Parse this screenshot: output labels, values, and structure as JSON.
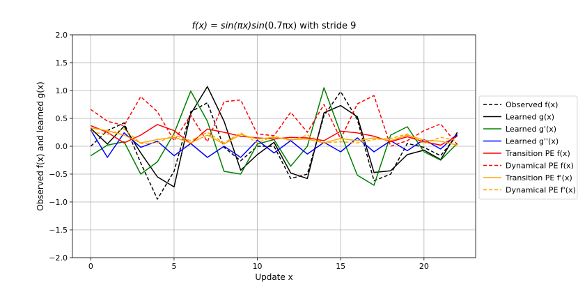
{
  "chart_data": {
    "type": "line",
    "title": "f(x) = sin(πx)sin(0.7πx) with stride 9",
    "title_parts": {
      "fx": "f(x)",
      "eq": "=",
      "sin1": "sin",
      "arg1": "(πx)",
      "sin2": "sin",
      "arg2": "(0.7πx)",
      "suffix": "with stride 9"
    },
    "xlabel": "Update x",
    "ylabel": "Observed f(x) and learned g(x)",
    "xlim": [
      -1.1,
      23.1
    ],
    "ylim": [
      -2.0,
      2.0
    ],
    "xticks": [
      0,
      5,
      10,
      15,
      20
    ],
    "yticks": [
      -2.0,
      -1.5,
      -1.0,
      -0.5,
      0.0,
      0.5,
      1.0,
      1.5,
      2.0
    ],
    "xtick_labels": [
      "0",
      "5",
      "10",
      "15",
      "20"
    ],
    "ytick_labels": [
      "−2.0",
      "−1.5",
      "−1.0",
      "−0.5",
      "0.0",
      "0.5",
      "1.0",
      "1.5",
      "2.0"
    ],
    "grid": true,
    "legend_position": "outside-right",
    "x": [
      0,
      1,
      2,
      3,
      4,
      5,
      6,
      7,
      8,
      9,
      10,
      11,
      12,
      13,
      14,
      15,
      16,
      17,
      18,
      19,
      20,
      21,
      22
    ],
    "series": [
      {
        "name": "Observed f(x)",
        "color": "#000000",
        "dashed": true,
        "values": [
          0.0,
          0.28,
          0.42,
          -0.3,
          -0.95,
          -0.45,
          0.62,
          0.78,
          -0.02,
          -0.26,
          0.0,
          0.0,
          -0.58,
          -0.5,
          0.55,
          0.98,
          0.48,
          -0.62,
          -0.5,
          0.05,
          -0.02,
          -0.17,
          0.2
        ]
      },
      {
        "name": "Learned g(x)",
        "color": "#000000",
        "dashed": false,
        "values": [
          0.32,
          0.04,
          0.36,
          -0.12,
          -0.55,
          -0.73,
          0.58,
          1.07,
          0.45,
          -0.43,
          -0.15,
          0.07,
          -0.48,
          -0.58,
          0.6,
          0.73,
          0.53,
          -0.47,
          -0.44,
          -0.15,
          -0.07,
          -0.24,
          0.25
        ]
      },
      {
        "name": "Learned g'(x)",
        "color": "#008000",
        "dashed": false,
        "values": [
          -0.17,
          0.02,
          0.08,
          -0.5,
          -0.28,
          0.23,
          0.99,
          0.45,
          -0.45,
          -0.5,
          0.04,
          0.12,
          -0.36,
          0.0,
          1.05,
          0.23,
          -0.52,
          -0.7,
          0.2,
          0.35,
          -0.1,
          -0.25,
          0.05
        ]
      },
      {
        "name": "Learned g''(x)",
        "color": "#0000ff",
        "dashed": false,
        "values": [
          0.29,
          -0.2,
          0.24,
          -0.02,
          0.09,
          -0.17,
          0.05,
          -0.2,
          0.0,
          -0.2,
          0.11,
          -0.12,
          0.1,
          -0.14,
          0.07,
          -0.1,
          0.15,
          -0.1,
          0.1,
          -0.08,
          0.12,
          -0.05,
          0.22
        ]
      },
      {
        "name": "Transition PE f(x)",
        "color": "#ff0000",
        "dashed": false,
        "values": [
          0.37,
          0.25,
          0.06,
          0.2,
          0.39,
          0.28,
          0.05,
          0.31,
          0.25,
          0.18,
          0.15,
          0.13,
          0.16,
          0.15,
          0.1,
          0.27,
          0.24,
          0.18,
          0.08,
          0.17,
          0.08,
          0.02,
          0.18
        ]
      },
      {
        "name": "Dynamical PE f(x)",
        "color": "#ff0000",
        "dashed": true,
        "values": [
          0.66,
          0.45,
          0.37,
          0.89,
          0.62,
          0.1,
          0.56,
          0.08,
          0.8,
          0.83,
          0.22,
          0.19,
          0.61,
          0.25,
          0.75,
          0.13,
          0.76,
          0.91,
          0.0,
          0.1,
          0.28,
          0.4,
          0.03
        ]
      },
      {
        "name": "Transition PE f'(x)",
        "color": "#ffa500",
        "dashed": false,
        "values": [
          0.33,
          0.28,
          0.2,
          0.06,
          0.12,
          0.16,
          0.06,
          0.2,
          0.04,
          0.21,
          0.13,
          0.16,
          0.12,
          0.13,
          0.06,
          0.14,
          0.1,
          0.15,
          0.1,
          0.2,
          0.11,
          0.09,
          0.02
        ]
      },
      {
        "name": "Dynamical PE f'(x)",
        "color": "#ffa500",
        "dashed": true,
        "values": [
          0.26,
          0.21,
          0.31,
          0.05,
          0.06,
          0.2,
          0.1,
          0.25,
          0.06,
          0.24,
          0.06,
          0.18,
          0.1,
          0.2,
          0.06,
          0.08,
          0.06,
          0.12,
          0.14,
          0.22,
          0.05,
          0.16,
          0.1
        ]
      }
    ]
  }
}
